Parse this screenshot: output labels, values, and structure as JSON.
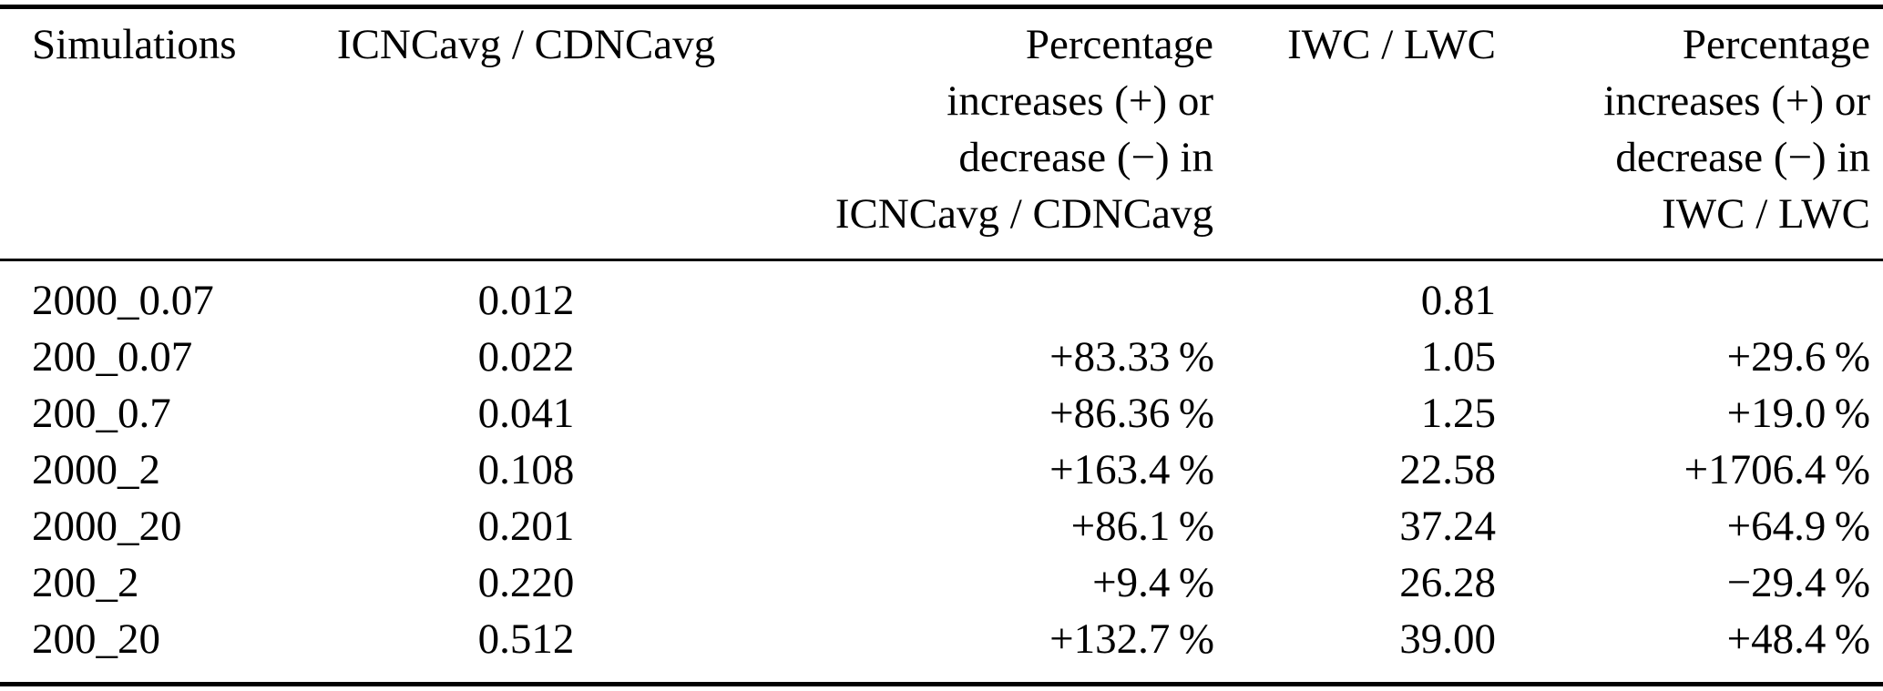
{
  "colors": {
    "background": "#ffffff",
    "text": "#000000",
    "rule": "#000000"
  },
  "table": {
    "columns": [
      {
        "label": "Simulations",
        "align": "left"
      },
      {
        "label": "ICNCavg / CDNCavg",
        "align": "center"
      },
      {
        "label_lines": [
          "Percentage",
          "increases (+) or",
          "decrease (−) in",
          "ICNCavg / CDNCavg"
        ],
        "align": "right"
      },
      {
        "label": "IWC / LWC",
        "align": "right"
      },
      {
        "label_lines": [
          "Percentage",
          "increases (+) or",
          "decrease (−) in",
          "IWC / LWC"
        ],
        "align": "right"
      }
    ],
    "rows": [
      [
        "2000_0.07",
        "0.012",
        "",
        "0.81",
        ""
      ],
      [
        "200_0.07",
        "0.022",
        "+83.33 %",
        "1.05",
        "+29.6 %"
      ],
      [
        "200_0.7",
        "0.041",
        "+86.36 %",
        "1.25",
        "+19.0 %"
      ],
      [
        "2000_2",
        "0.108",
        "+163.4 %",
        "22.58",
        "+1706.4 %"
      ],
      [
        "2000_20",
        "0.201",
        "+86.1 %",
        "37.24",
        "+64.9 %"
      ],
      [
        "200_2",
        "0.220",
        "+9.4 %",
        "26.28",
        "−29.4 %"
      ],
      [
        "200_20",
        "0.512",
        "+132.7 %",
        "39.00",
        "+48.4 %"
      ]
    ]
  }
}
